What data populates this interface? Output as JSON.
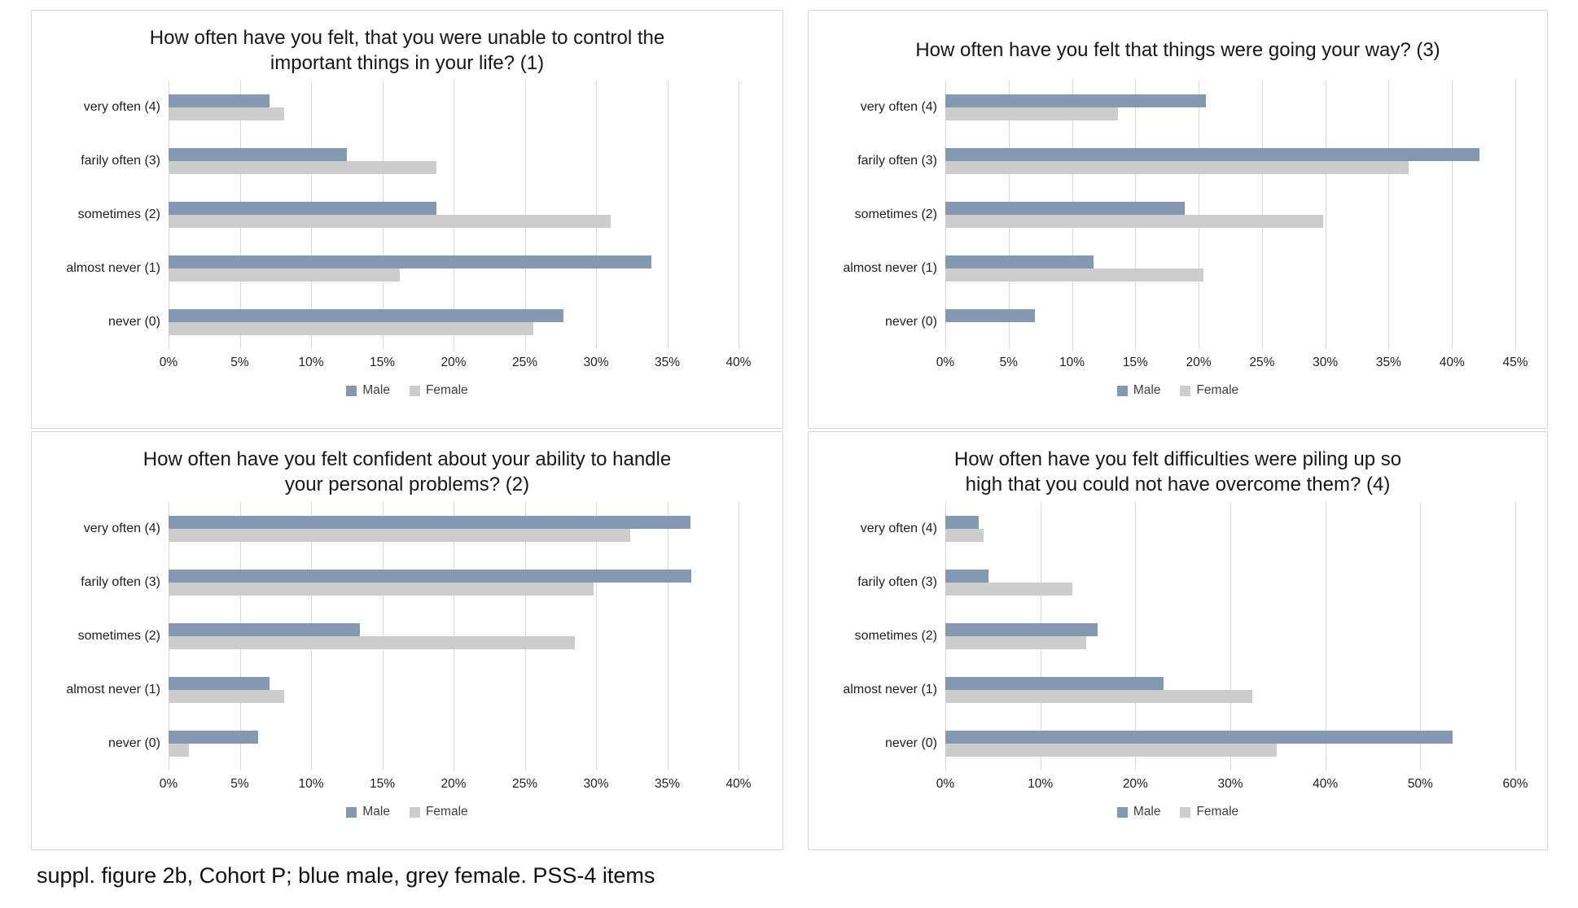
{
  "page": {
    "caption": "suppl. figure 2b, Cohort P; blue male, grey female. PSS-4 items"
  },
  "colors": {
    "male": "#8598b1",
    "female": "#cdcdcd",
    "gridline": "#d9d9d9"
  },
  "chart_data": [
    {
      "type": "bar",
      "orientation": "horizontal",
      "title": "How often have you felt, that you were unable to control the\nimportant things in your life? (1)",
      "categories": [
        "very often (4)",
        "farily often (3)",
        "sometimes (2)",
        "almost never (1)",
        "never (0)"
      ],
      "series": [
        {
          "name": "Male",
          "color": "#8598b1",
          "values": [
            7.1,
            12.5,
            18.8,
            33.9,
            27.7
          ]
        },
        {
          "name": "Female",
          "color": "#cdcdcd",
          "values": [
            8.1,
            18.8,
            31.0,
            16.2,
            25.6
          ]
        }
      ],
      "xlim": [
        0,
        40
      ],
      "xtick_values": [
        0,
        5,
        10,
        15,
        20,
        25,
        30,
        35,
        40
      ],
      "xtick_labels": [
        "0%",
        "5%",
        "10%",
        "15%",
        "20%",
        "25%",
        "30%",
        "35%",
        "40%"
      ],
      "grid": "vertical",
      "legend_position": "bottom"
    },
    {
      "type": "bar",
      "orientation": "horizontal",
      "title": "How often have you felt that things were going your way? (3)",
      "categories": [
        "very often (4)",
        "farily often (3)",
        "sometimes (2)",
        "almost never (1)",
        "never (0)"
      ],
      "series": [
        {
          "name": "Male",
          "color": "#8598b1",
          "values": [
            20.6,
            42.2,
            18.9,
            11.7,
            7.1
          ]
        },
        {
          "name": "Female",
          "color": "#cdcdcd",
          "values": [
            13.6,
            36.6,
            29.8,
            20.4,
            0
          ]
        }
      ],
      "xlim": [
        0,
        45
      ],
      "xtick_values": [
        0,
        5,
        10,
        15,
        20,
        25,
        30,
        35,
        40,
        45
      ],
      "xtick_labels": [
        "0%",
        "5%",
        "10%",
        "15%",
        "20%",
        "25%",
        "30%",
        "35%",
        "40%",
        "45%"
      ],
      "grid": "vertical",
      "legend_position": "bottom"
    },
    {
      "type": "bar",
      "orientation": "horizontal",
      "title": "How often have you felt confident about your ability to handle\nyour personal problems? (2)",
      "categories": [
        "very often (4)",
        "farily often (3)",
        "sometimes (2)",
        "almost never (1)",
        "never (0)"
      ],
      "series": [
        {
          "name": "Male",
          "color": "#8598b1",
          "values": [
            36.6,
            36.7,
            13.4,
            7.1,
            6.3
          ]
        },
        {
          "name": "Female",
          "color": "#cdcdcd",
          "values": [
            32.4,
            29.8,
            28.5,
            8.1,
            1.4
          ]
        }
      ],
      "xlim": [
        0,
        40
      ],
      "xtick_values": [
        0,
        5,
        10,
        15,
        20,
        25,
        30,
        35,
        40
      ],
      "xtick_labels": [
        "0%",
        "5%",
        "10%",
        "15%",
        "20%",
        "25%",
        "30%",
        "35%",
        "40%"
      ],
      "grid": "vertical",
      "legend_position": "bottom"
    },
    {
      "type": "bar",
      "orientation": "horizontal",
      "title": "How often have you felt difficulties were piling up so\nhigh that you could not have overcome them? (4)",
      "categories": [
        "very often (4)",
        "farily often (3)",
        "sometimes (2)",
        "almost never (1)",
        "never (0)"
      ],
      "series": [
        {
          "name": "Male",
          "color": "#8598b1",
          "values": [
            3.5,
            4.5,
            16.0,
            23.0,
            53.4
          ]
        },
        {
          "name": "Female",
          "color": "#cdcdcd",
          "values": [
            4.0,
            13.4,
            14.8,
            32.3,
            34.9
          ]
        }
      ],
      "xlim": [
        0,
        60
      ],
      "xtick_values": [
        0,
        10,
        20,
        30,
        40,
        50,
        60
      ],
      "xtick_labels": [
        "0%",
        "10%",
        "20%",
        "30%",
        "40%",
        "50%",
        "60%"
      ],
      "grid": "vertical",
      "legend_position": "bottom"
    }
  ]
}
